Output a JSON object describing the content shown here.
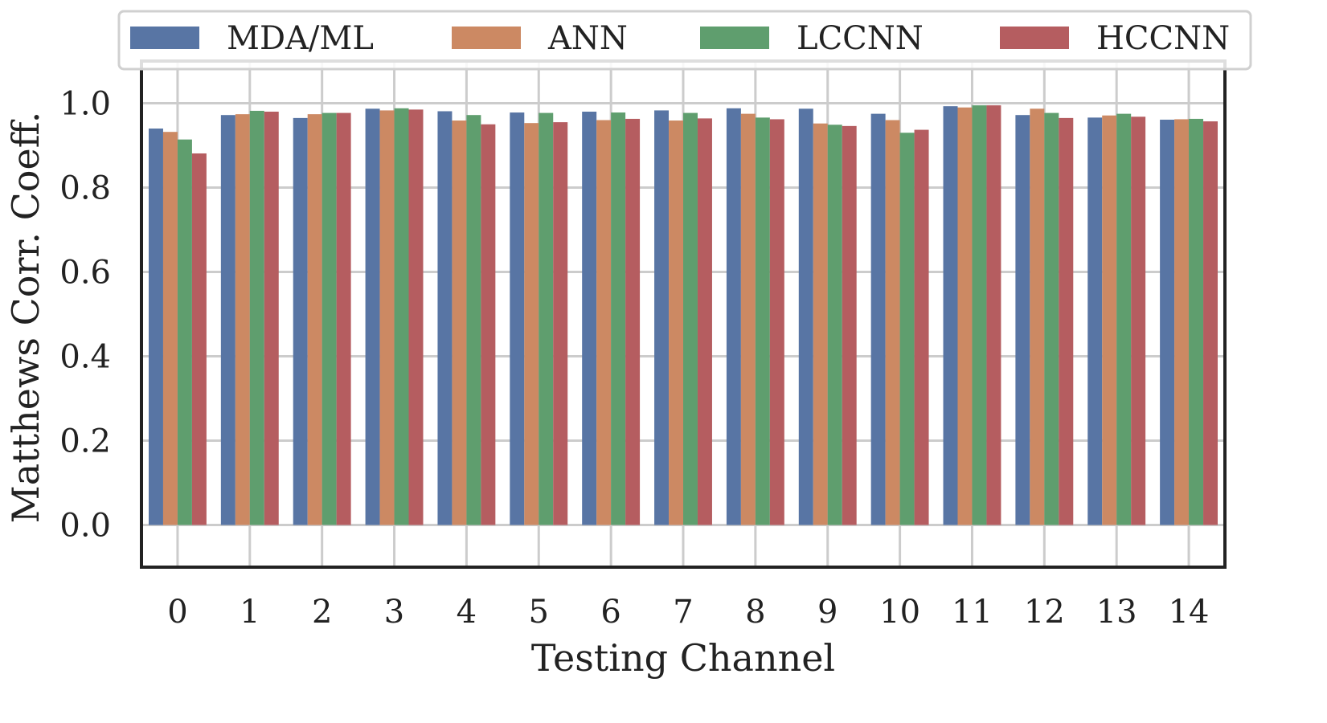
{
  "chart_data": {
    "type": "bar",
    "title": "",
    "xlabel": "Testing Channel",
    "ylabel": "Matthews Corr. Coeff.",
    "ylim": [
      -0.1,
      1.1
    ],
    "yticks": [
      "0.0",
      "0.2",
      "0.4",
      "0.6",
      "0.8",
      "1.0"
    ],
    "grid": true,
    "legend_position": "top",
    "categories": [
      "0",
      "1",
      "2",
      "3",
      "4",
      "5",
      "6",
      "7",
      "8",
      "9",
      "10",
      "11",
      "12",
      "13",
      "14"
    ],
    "series": [
      {
        "name": "MDA/ML",
        "color": "#5875a4",
        "values": [
          0.94,
          0.972,
          0.965,
          0.987,
          0.981,
          0.978,
          0.98,
          0.983,
          0.988,
          0.987,
          0.975,
          0.993,
          0.972,
          0.966,
          0.961
        ]
      },
      {
        "name": "ANN",
        "color": "#cc8963",
        "values": [
          0.932,
          0.974,
          0.974,
          0.983,
          0.959,
          0.953,
          0.96,
          0.959,
          0.975,
          0.952,
          0.96,
          0.99,
          0.987,
          0.971,
          0.962
        ]
      },
      {
        "name": "LCCNN",
        "color": "#5f9e6e",
        "values": [
          0.914,
          0.982,
          0.977,
          0.988,
          0.972,
          0.977,
          0.978,
          0.977,
          0.966,
          0.949,
          0.93,
          0.995,
          0.977,
          0.975,
          0.963
        ]
      },
      {
        "name": "HCCNN",
        "color": "#b55d60",
        "values": [
          0.881,
          0.98,
          0.977,
          0.985,
          0.95,
          0.955,
          0.963,
          0.964,
          0.962,
          0.946,
          0.937,
          0.995,
          0.965,
          0.968,
          0.957
        ]
      }
    ]
  }
}
